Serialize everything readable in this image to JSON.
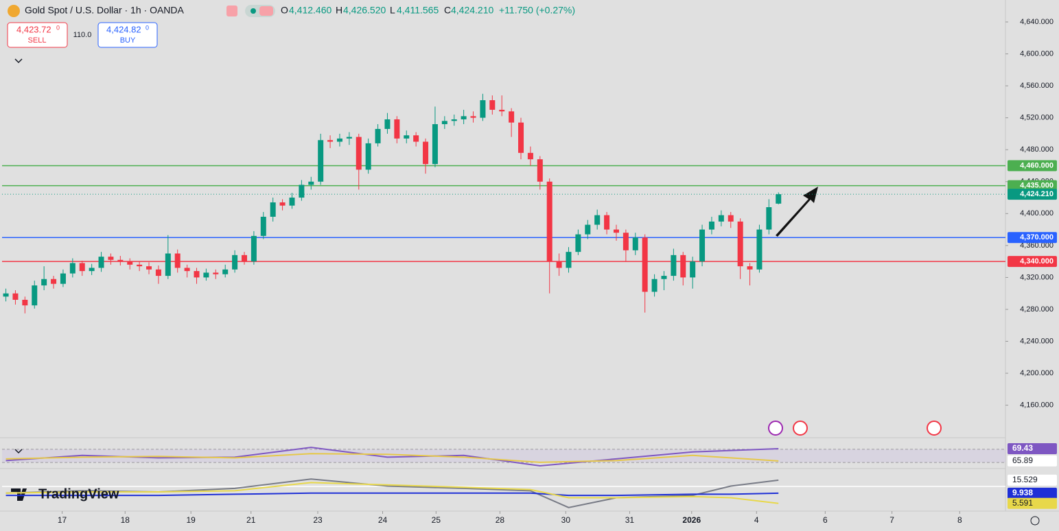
{
  "header": {
    "symbol": "Gold Spot / U.S. Dollar · 1h · OANDA",
    "o_label": "O",
    "o": "4,412.460",
    "h_label": "H",
    "h": "4,426.520",
    "l_label": "L",
    "l": "4,411.565",
    "c_label": "C",
    "c": "4,424.210",
    "change": "+11.750 (+0.27%)"
  },
  "trade": {
    "sell_price": "4,423.72",
    "sell_sup": "0",
    "sell": "SELL",
    "spread": "110.0",
    "buy_price": "4,424.82",
    "buy_sup": "0",
    "buy": "BUY"
  },
  "brand": "TradingView",
  "chart_data": [
    {
      "type": "candlestick",
      "up_color": "#089981",
      "down_color": "#f23645",
      "ohlc": [
        [
          4296,
          4306,
          4290,
          4300
        ],
        [
          4300,
          4304,
          4286,
          4292
        ],
        [
          4292,
          4296,
          4275,
          4285
        ],
        [
          4285,
          4316,
          4281,
          4310
        ],
        [
          4310,
          4334,
          4304,
          4318
        ],
        [
          4318,
          4322,
          4306,
          4312
        ],
        [
          4312,
          4330,
          4308,
          4325
        ],
        [
          4325,
          4344,
          4320,
          4338
        ],
        [
          4338,
          4341,
          4322,
          4328
        ],
        [
          4328,
          4337,
          4323,
          4332
        ],
        [
          4332,
          4352,
          4327,
          4346
        ],
        [
          4346,
          4350,
          4336,
          4342
        ],
        [
          4342,
          4347,
          4335,
          4340
        ],
        [
          4340,
          4344,
          4330,
          4336
        ],
        [
          4336,
          4340,
          4328,
          4334
        ],
        [
          4334,
          4339,
          4324,
          4330
        ],
        [
          4330,
          4335,
          4312,
          4322
        ],
        [
          4322,
          4373,
          4318,
          4350
        ],
        [
          4350,
          4355,
          4326,
          4332
        ],
        [
          4332,
          4336,
          4320,
          4328
        ],
        [
          4328,
          4332,
          4312,
          4320
        ],
        [
          4320,
          4331,
          4316,
          4326
        ],
        [
          4326,
          4330,
          4318,
          4324
        ],
        [
          4324,
          4336,
          4320,
          4330
        ],
        [
          4330,
          4354,
          4326,
          4348
        ],
        [
          4348,
          4352,
          4336,
          4340
        ],
        [
          4340,
          4378,
          4336,
          4372
        ],
        [
          4372,
          4402,
          4368,
          4396
        ],
        [
          4396,
          4420,
          4390,
          4414
        ],
        [
          4414,
          4418,
          4404,
          4410
        ],
        [
          4410,
          4426,
          4406,
          4420
        ],
        [
          4420,
          4442,
          4416,
          4436
        ],
        [
          4436,
          4446,
          4430,
          4440
        ],
        [
          4440,
          4500,
          4436,
          4492
        ],
        [
          4492,
          4498,
          4482,
          4490
        ],
        [
          4490,
          4500,
          4484,
          4494
        ],
        [
          4494,
          4502,
          4486,
          4496
        ],
        [
          4496,
          4500,
          4430,
          4455
        ],
        [
          4455,
          4494,
          4450,
          4488
        ],
        [
          4488,
          4512,
          4484,
          4506
        ],
        [
          4506,
          4526,
          4500,
          4518
        ],
        [
          4518,
          4522,
          4488,
          4494
        ],
        [
          4494,
          4504,
          4488,
          4498
        ],
        [
          4498,
          4502,
          4484,
          4490
        ],
        [
          4490,
          4494,
          4450,
          4462
        ],
        [
          4462,
          4534,
          4458,
          4512
        ],
        [
          4512,
          4522,
          4506,
          4516
        ],
        [
          4516,
          4524,
          4510,
          4518
        ],
        [
          4518,
          4530,
          4512,
          4522
        ],
        [
          4522,
          4528,
          4514,
          4520
        ],
        [
          4520,
          4550,
          4516,
          4542
        ],
        [
          4542,
          4548,
          4524,
          4530
        ],
        [
          4530,
          4548,
          4522,
          4528
        ],
        [
          4528,
          4532,
          4496,
          4514
        ],
        [
          4514,
          4520,
          4468,
          4476
        ],
        [
          4476,
          4484,
          4460,
          4468
        ],
        [
          4468,
          4472,
          4430,
          4440
        ],
        [
          4440,
          4444,
          4300,
          4340
        ],
        [
          4340,
          4350,
          4322,
          4332
        ],
        [
          4332,
          4358,
          4326,
          4352
        ],
        [
          4352,
          4380,
          4348,
          4374
        ],
        [
          4374,
          4392,
          4368,
          4386
        ],
        [
          4386,
          4405,
          4380,
          4398
        ],
        [
          4398,
          4402,
          4374,
          4380
        ],
        [
          4380,
          4386,
          4366,
          4376
        ],
        [
          4376,
          4380,
          4340,
          4354
        ],
        [
          4354,
          4376,
          4348,
          4370
        ],
        [
          4370,
          4374,
          4276,
          4302
        ],
        [
          4302,
          4324,
          4296,
          4318
        ],
        [
          4318,
          4328,
          4304,
          4322
        ],
        [
          4322,
          4356,
          4316,
          4348
        ],
        [
          4348,
          4352,
          4310,
          4320
        ],
        [
          4320,
          4346,
          4306,
          4340
        ],
        [
          4340,
          4386,
          4334,
          4380
        ],
        [
          4380,
          4396,
          4374,
          4390
        ],
        [
          4390,
          4404,
          4384,
          4398
        ],
        [
          4398,
          4402,
          4382,
          4390
        ],
        [
          4390,
          4394,
          4318,
          4334
        ],
        [
          4334,
          4338,
          4310,
          4330
        ],
        [
          4330,
          4386,
          4326,
          4380
        ],
        [
          4380,
          4418,
          4374,
          4408
        ],
        [
          4412.46,
          4426.52,
          4411.565,
          4424.21
        ]
      ],
      "xlim": [
        -0.4,
        104.8
      ],
      "xticks": [
        {
          "value": 5.9,
          "label": "17"
        },
        {
          "value": 12.5,
          "label": "18"
        },
        {
          "value": 19.4,
          "label": "19"
        },
        {
          "value": 25.7,
          "label": "21"
        },
        {
          "value": 32.7,
          "label": "23"
        },
        {
          "value": 39.5,
          "label": "24"
        },
        {
          "value": 45.1,
          "label": "25"
        },
        {
          "value": 51.8,
          "label": "28"
        },
        {
          "value": 58.7,
          "label": "30"
        },
        {
          "value": 65.4,
          "label": "31"
        },
        {
          "value": 71.9,
          "label": "2026"
        },
        {
          "value": 78.7,
          "label": "4"
        },
        {
          "value": 85.9,
          "label": "6"
        },
        {
          "value": 92.9,
          "label": "7"
        },
        {
          "value": 100.0,
          "label": "8"
        }
      ],
      "ylim": [
        4121,
        4667.5
      ],
      "yticks": [
        {
          "value": 4160,
          "label": "4,160.000"
        },
        {
          "value": 4200,
          "label": "4,200.000"
        },
        {
          "value": 4240,
          "label": "4,240.000"
        },
        {
          "value": 4280,
          "label": "4,280.000"
        },
        {
          "value": 4320,
          "label": "4,320.000"
        },
        {
          "value": 4360,
          "label": "4,360.000"
        },
        {
          "value": 4400,
          "label": "4,400.000"
        },
        {
          "value": 4440,
          "label": "4,440.000"
        },
        {
          "value": 4480,
          "label": "4,480.000"
        },
        {
          "value": 4520,
          "label": "4,520.000"
        },
        {
          "value": 4560,
          "label": "4,560.000"
        },
        {
          "value": 4600,
          "label": "4,600.000"
        },
        {
          "value": 4640,
          "label": "4,640.000"
        }
      ],
      "levels": [
        {
          "value": 4460,
          "label": "4,460.000",
          "color": "#4caf50"
        },
        {
          "value": 4435,
          "label": "4,435.000",
          "color": "#4caf50"
        },
        {
          "value": 4370,
          "label": "4,370.000",
          "color": "#2962ff"
        },
        {
          "value": 4340,
          "label": "4,340.000",
          "color": "#f23645"
        }
      ],
      "last_price": {
        "value": 4424.21,
        "label": "4,424.210",
        "color": "#089981"
      }
    },
    {
      "type": "line",
      "xlim": [
        -0.4,
        104.8
      ],
      "ylim": [
        63.9,
        72.2
      ],
      "x": [
        0,
        8,
        16,
        24,
        32,
        40,
        48,
        56,
        64,
        72,
        81
      ],
      "series": [
        {
          "color": "#7e57c2",
          "values": [
            66,
            67.5,
            66.8,
            67,
            69.8,
            67,
            67.5,
            64.5,
            66.5,
            68.5,
            69.43
          ],
          "last_label": "69.43"
        },
        {
          "color": "#e6c84a",
          "values": [
            66.5,
            67,
            67.2,
            66.8,
            68,
            67.8,
            67,
            65.5,
            66,
            67.5,
            65.89
          ],
          "last_label": "65.89"
        }
      ]
    },
    {
      "type": "line",
      "xlim": [
        -0.4,
        104.8
      ],
      "ylim": [
        1.4,
        20.2
      ],
      "x": [
        0,
        8,
        16,
        24,
        32,
        40,
        48,
        55,
        59,
        64,
        72,
        76,
        81
      ],
      "series": [
        {
          "color": "#787b86",
          "values": [
            10,
            11,
            10.5,
            12,
            16,
            13,
            12,
            11,
            3.8,
            8,
            9,
            13,
            15.529
          ],
          "last_label": "15.529"
        },
        {
          "color": "#1e2fd6",
          "values": [
            9,
            9,
            9,
            9.5,
            10,
            10,
            10,
            10,
            9,
            9,
            9.5,
            9.5,
            9.938
          ],
          "last_label": "9.938"
        },
        {
          "color": "#e8d84a",
          "values": [
            10,
            10.5,
            10.5,
            11,
            14.5,
            13.5,
            12.5,
            11.5,
            8,
            8,
            8.5,
            8,
            5.591
          ],
          "last_label": "5.591"
        }
      ]
    }
  ]
}
